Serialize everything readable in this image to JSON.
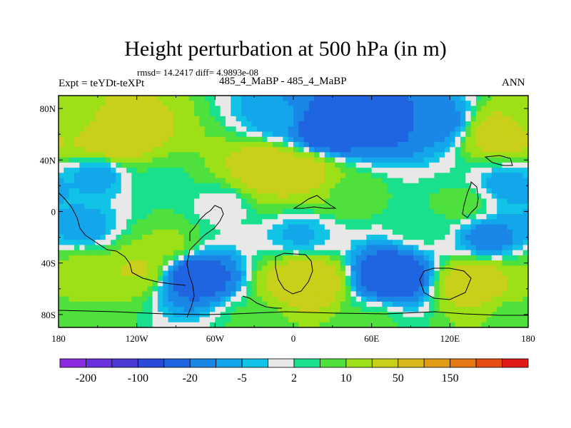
{
  "header": {
    "title": "Height perturbation at 500 hPa (in m)",
    "stats": "rmsd= 14.2417 diff= 4.9893e-08",
    "left_label": "Expt = teYDt-teXPt",
    "center_label": "485_4_MaBP - 485_4_MaBP",
    "right_label": "ANN"
  },
  "chart_data": {
    "type": "heatmap",
    "projection": "cylindrical-equidistant",
    "x_axis": {
      "range": [
        -180,
        180
      ],
      "ticks": [
        -180,
        -120,
        -60,
        0,
        60,
        120,
        180
      ],
      "tick_labels": [
        "180",
        "120W",
        "60W",
        "0",
        "60E",
        "120E",
        "180"
      ]
    },
    "y_axis": {
      "range": [
        -90,
        90
      ],
      "ticks": [
        80,
        40,
        0,
        -40,
        -80
      ],
      "tick_labels": [
        "80N",
        "40N",
        "0",
        "40S",
        "80S"
      ]
    },
    "colorbar": {
      "position": "bottom",
      "colors": [
        "#8a2be2",
        "#6a32dc",
        "#4a3ad6",
        "#2c4ad8",
        "#1f64e0",
        "#1a86e6",
        "#13a6ea",
        "#11c3e6",
        "#e8e8e8",
        "#19e08c",
        "#4ee03c",
        "#9de017",
        "#c9d019",
        "#d8b818",
        "#e09c14",
        "#e47812",
        "#e44e12",
        "#e01a1a"
      ],
      "labels": [
        {
          "after_index": 0,
          "text": "-200"
        },
        {
          "after_index": 2,
          "text": "-100"
        },
        {
          "after_index": 4,
          "text": "-20"
        },
        {
          "after_index": 6,
          "text": "-5"
        },
        {
          "after_index": 8,
          "text": "2"
        },
        {
          "after_index": 10,
          "text": "10"
        },
        {
          "after_index": 12,
          "text": "50"
        },
        {
          "after_index": 14,
          "text": "150"
        }
      ]
    },
    "field_features": [
      {
        "lon": -137,
        "lat": 58,
        "value": 48
      },
      {
        "lon": -172,
        "lat": 72,
        "value": 10
      },
      {
        "lon": -10,
        "lat": 72,
        "value": -8
      },
      {
        "lon": 25,
        "lat": 64,
        "value": -45
      },
      {
        "lon": 70,
        "lat": 70,
        "value": -30
      },
      {
        "lon": 110,
        "lat": 70,
        "value": -15
      },
      {
        "lon": 160,
        "lat": 60,
        "value": 32
      },
      {
        "lon": -20,
        "lat": 33,
        "value": 36
      },
      {
        "lon": 5,
        "lat": 30,
        "value": 30
      },
      {
        "lon": -150,
        "lat": 28,
        "value": -8
      },
      {
        "lon": -100,
        "lat": 25,
        "value": 4
      },
      {
        "lon": 165,
        "lat": 20,
        "value": -8
      },
      {
        "lon": 40,
        "lat": 14,
        "value": 9
      },
      {
        "lon": 130,
        "lat": 5,
        "value": 8
      },
      {
        "lon": -55,
        "lat": 5,
        "value": 0
      },
      {
        "lon": 5,
        "lat": -18,
        "value": -6
      },
      {
        "lon": -160,
        "lat": -12,
        "value": -8
      },
      {
        "lon": -95,
        "lat": -25,
        "value": 12
      },
      {
        "lon": 100,
        "lat": -10,
        "value": 5
      },
      {
        "lon": 150,
        "lat": -20,
        "value": -15
      },
      {
        "lon": -165,
        "lat": -45,
        "value": 12
      },
      {
        "lon": -120,
        "lat": -44,
        "value": 22
      },
      {
        "lon": -75,
        "lat": -50,
        "value": -35
      },
      {
        "lon": 10,
        "lat": -55,
        "value": 40
      },
      {
        "lon": 75,
        "lat": -50,
        "value": -40
      },
      {
        "lon": 140,
        "lat": -55,
        "value": 35
      },
      {
        "lon": -30,
        "lat": -85,
        "value": 6
      },
      {
        "lon": 60,
        "lat": -85,
        "value": 6
      },
      {
        "lon": 170,
        "lat": -80,
        "value": 8
      }
    ]
  }
}
